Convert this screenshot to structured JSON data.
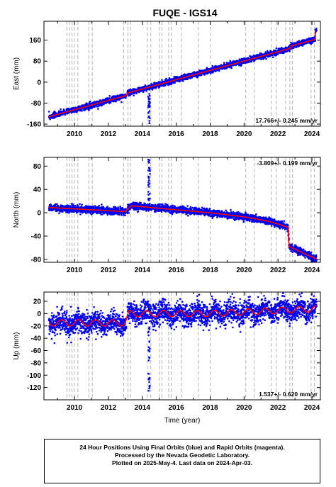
{
  "title": "FUQE - IGS14",
  "xlabel": "Time (year)",
  "caption": [
    "24 Hour Positions Using Final Orbits (blue) and Rapid Orbits (magenta).",
    "Processed by the Nevada Geodetic Laboratory.",
    "Plotted on 2025-May-4. Last data on 2024-Apr-03."
  ],
  "colors": {
    "points": "#0000ee",
    "model": "#ff0000",
    "steps": "#b4b4b4"
  },
  "chart_data": [
    {
      "type": "scatter",
      "ylabel": "East (mm)",
      "rate_label": "17.766+/- 0.245 mm/yr",
      "rate_position": "bottom-right",
      "xlim": [
        2008.2,
        2024.5
      ],
      "ylim": [
        -168,
        232
      ],
      "xticks": [
        2010,
        2012,
        2014,
        2016,
        2018,
        2020,
        2022,
        2024
      ],
      "yticks": [
        -160,
        -80,
        0,
        80,
        160
      ],
      "x_tick_labels_below": true,
      "trend_start": [
        2008.5,
        -132
      ],
      "trend_rate": 17.766,
      "offsets": [
        {
          "year": 2013.1,
          "value": 8
        },
        {
          "year": 2022.7,
          "value": 8
        },
        {
          "year": 2024.2,
          "value": 30
        }
      ],
      "outliers": [
        {
          "year": 2014.4,
          "min": -160,
          "max": -40
        }
      ],
      "noise": 5
    },
    {
      "type": "scatter",
      "ylabel": "North (mm)",
      "rate_label": "-3.809+/- 0.199 mm/yr",
      "rate_position": "top-right",
      "xlim": [
        2008.2,
        2024.5
      ],
      "ylim": [
        -85,
        95
      ],
      "xticks": [
        2010,
        2012,
        2014,
        2016,
        2018,
        2020,
        2022,
        2024
      ],
      "yticks": [
        -80,
        -40,
        0,
        40,
        80
      ],
      "x_tick_labels_below": true,
      "profile": [
        [
          2008.5,
          9
        ],
        [
          2013.0,
          2
        ],
        [
          2013.35,
          12
        ],
        [
          2016.0,
          5
        ],
        [
          2018.0,
          0
        ],
        [
          2020.0,
          -7
        ],
        [
          2021.5,
          -15
        ],
        [
          2022.6,
          -25
        ],
        [
          2022.65,
          -58
        ],
        [
          2024.3,
          -80
        ]
      ],
      "outliers": [
        {
          "year": 2014.4,
          "min": 15,
          "max": 92
        }
      ],
      "noise": 3
    },
    {
      "type": "scatter",
      "ylabel": "Up (mm)",
      "rate_label": "1.537+/- 0.620 mm/yr",
      "rate_position": "bottom-right",
      "xlim": [
        2008.2,
        2024.5
      ],
      "ylim": [
        -140,
        35
      ],
      "xticks": [
        2010,
        2012,
        2014,
        2016,
        2018,
        2020,
        2022,
        2024
      ],
      "yticks": [
        -120,
        -100,
        -80,
        -60,
        -40,
        -20,
        0,
        20
      ],
      "x_tick_labels_below": true,
      "profile": [
        [
          2008.5,
          -15
        ],
        [
          2013.0,
          -15
        ],
        [
          2013.2,
          0
        ],
        [
          2018.0,
          0
        ],
        [
          2024.3,
          8
        ]
      ],
      "seasonal_amplitude": 5,
      "outliers": [
        {
          "year": 2014.4,
          "min": -135,
          "max": -20
        }
      ],
      "noise": 9
    }
  ],
  "step_lines": [
    2009.55,
    2009.7,
    2009.85,
    2010.0,
    2010.2,
    2010.85,
    2011.05,
    2012.9,
    2013.15,
    2013.3,
    2014.3,
    2014.5,
    2015.0,
    2015.15,
    2015.55,
    2015.7,
    2016.3,
    2017.3,
    2018.0,
    2020.1,
    2020.6,
    2021.6,
    2021.9,
    2022.45,
    2022.7,
    2022.85,
    2023.95,
    2024.15
  ]
}
